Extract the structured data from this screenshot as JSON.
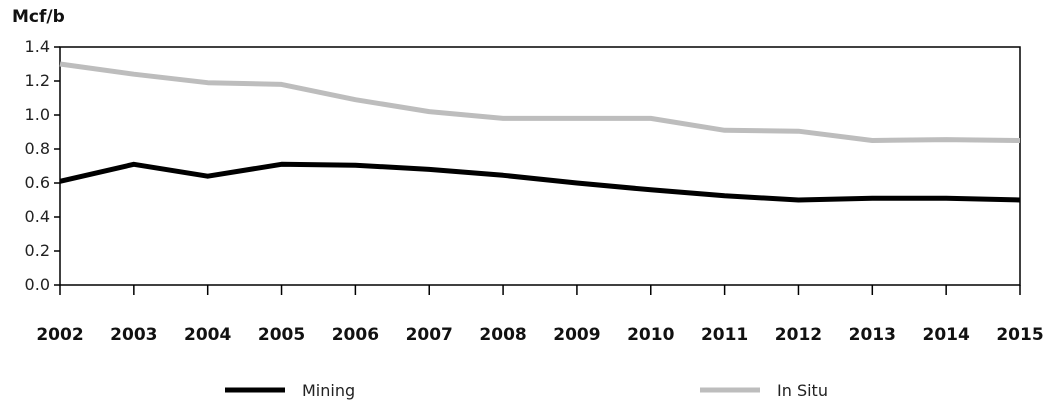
{
  "chart_data": {
    "type": "line",
    "title": "",
    "ylabel": "Mcf/b",
    "xlabel": "",
    "ylim": [
      0,
      1.4
    ],
    "yticks": [
      "0.0",
      "0.2",
      "0.4",
      "0.6",
      "0.8",
      "1.0",
      "1.2",
      "1.4"
    ],
    "x": [
      "2002",
      "2003",
      "2004",
      "2005",
      "2006",
      "2007",
      "2008",
      "2009",
      "2010",
      "2011",
      "2012",
      "2013",
      "2014",
      "2015"
    ],
    "series": [
      {
        "name": "Mining",
        "color": "#000000",
        "values": [
          0.61,
          0.71,
          0.64,
          0.71,
          0.705,
          0.68,
          0.645,
          0.6,
          0.56,
          0.525,
          0.5,
          0.51,
          0.51,
          0.5
        ]
      },
      {
        "name": "In Situ",
        "color": "#bdbdbd",
        "values": [
          1.3,
          1.24,
          1.19,
          1.18,
          1.09,
          1.02,
          0.98,
          0.98,
          0.98,
          0.91,
          0.905,
          0.85,
          0.855,
          0.85
        ]
      }
    ],
    "grid": false,
    "legend_position": "bottom"
  }
}
